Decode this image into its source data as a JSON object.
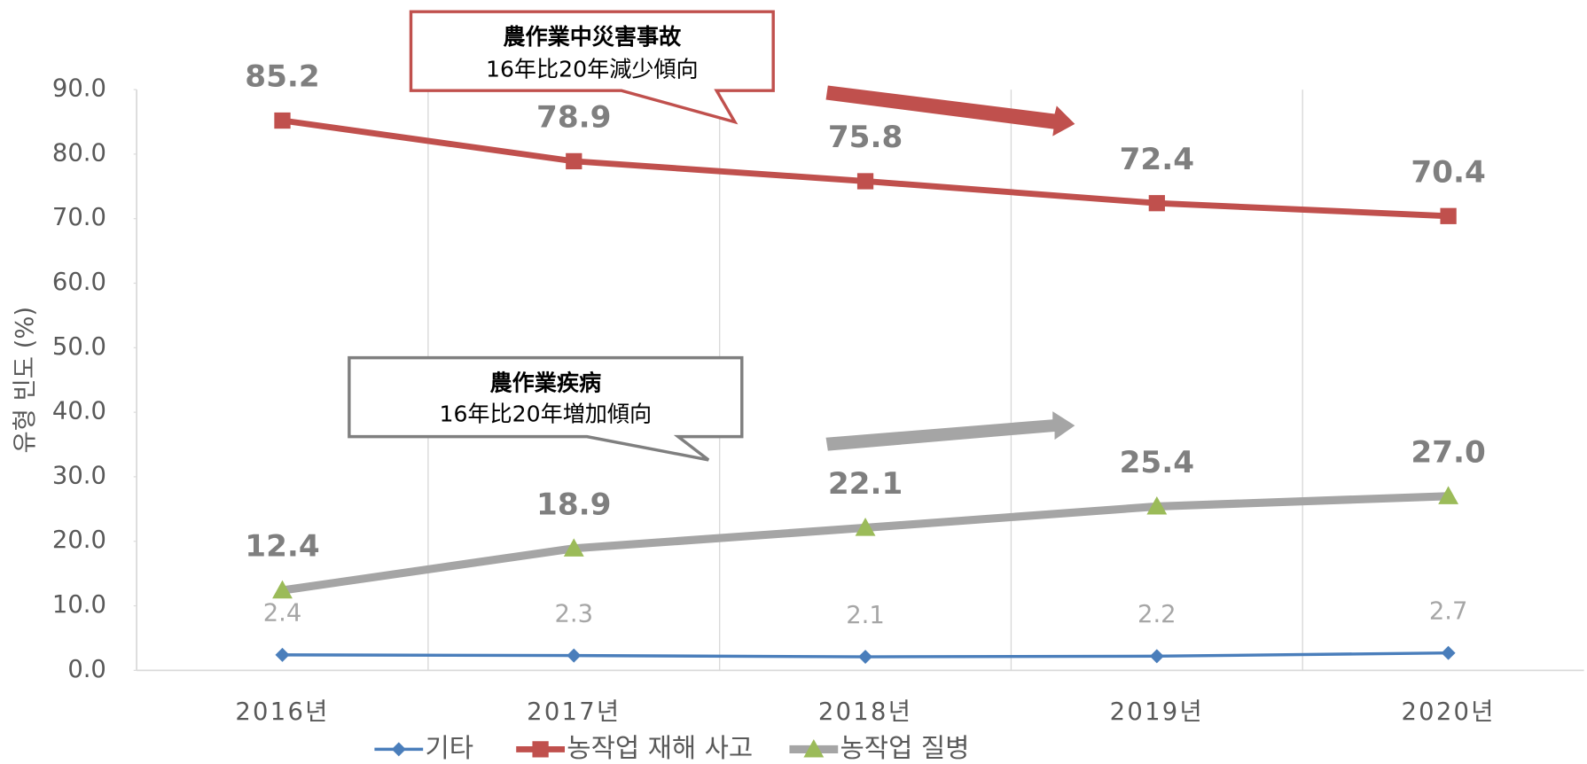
{
  "chart_data": {
    "type": "line",
    "ylabel": "유형 빈도 (%)",
    "categories": [
      "2016년",
      "2017년",
      "2018년",
      "2019년",
      "2020년"
    ],
    "ylim": [
      0,
      90
    ],
    "yticks": [
      {
        "value": 0,
        "label": "0.0"
      },
      {
        "value": 10,
        "label": "10.0"
      },
      {
        "value": 20,
        "label": "20.0"
      },
      {
        "value": 30,
        "label": "30.0"
      },
      {
        "value": 40,
        "label": "40.0"
      },
      {
        "value": 50,
        "label": "50.0"
      },
      {
        "value": 60,
        "label": "60.0"
      },
      {
        "value": 70,
        "label": "70.0"
      },
      {
        "value": 80,
        "label": "80.0"
      },
      {
        "value": 90,
        "label": "90.0"
      }
    ],
    "grid": "x",
    "legend": "bottom",
    "series": [
      {
        "name": "기타",
        "color": "#4a7ebb",
        "marker": "diamond",
        "marker_color": "#4a7ebb",
        "values": [
          2.4,
          2.3,
          2.1,
          2.2,
          2.7
        ],
        "value_labels": [
          "2.4",
          "2.3",
          "2.1",
          "2.2",
          "2.7"
        ]
      },
      {
        "name": "농작업 재해 사고",
        "color": "#c0504d",
        "marker": "square",
        "marker_color": "#c0504d",
        "values": [
          85.2,
          78.9,
          75.8,
          72.4,
          70.4
        ],
        "value_labels": [
          "85.2",
          "78.9",
          "75.8",
          "72.4",
          "70.4"
        ]
      },
      {
        "name": "농작업 질병",
        "color": "#a5a5a5",
        "marker": "triangle",
        "marker_color": "#9bbb59",
        "values": [
          12.4,
          18.9,
          22.1,
          25.4,
          27.0
        ],
        "value_labels": [
          "12.4",
          "18.9",
          "22.1",
          "25.4",
          "27.0"
        ]
      }
    ],
    "annotations": [
      {
        "lines": [
          "農作業中災害事故",
          "16年比20年減少傾向"
        ]
      },
      {
        "lines": [
          "農作業疾病",
          "16年比20年増加傾向"
        ]
      }
    ]
  }
}
